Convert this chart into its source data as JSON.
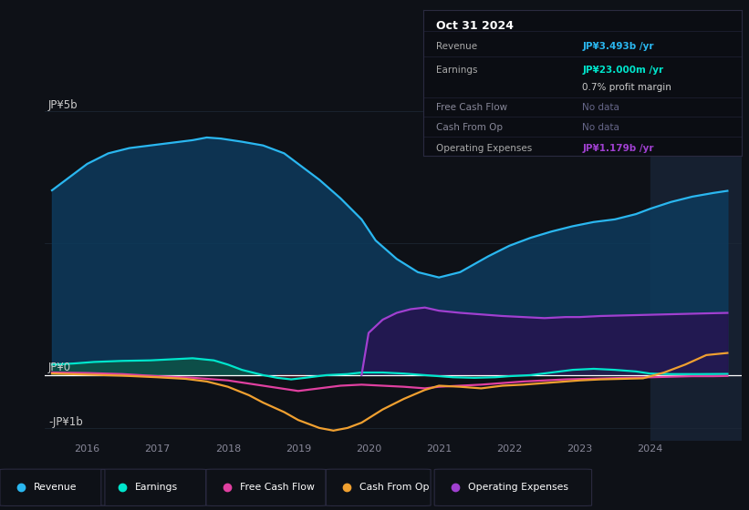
{
  "bg_color": "#0e1117",
  "plot_bg_color": "#0e1117",
  "ylabel_top": "JP¥5b",
  "ylabel_zero": "JP¥0",
  "ylabel_bottom": "-JP¥1b",
  "x_tick_labels": [
    "2016",
    "2017",
    "2018",
    "2019",
    "2020",
    "2021",
    "2022",
    "2023",
    "2024"
  ],
  "x_tick_positions": [
    2016,
    2017,
    2018,
    2019,
    2020,
    2021,
    2022,
    2023,
    2024
  ],
  "ylim": [
    -1.25,
    5.8
  ],
  "xlim": [
    2015.4,
    2025.3
  ],
  "revenue_color": "#2ab7f0",
  "earnings_color": "#00e5cc",
  "fcf_color": "#e040a0",
  "cashfromop_color": "#f0a030",
  "opex_color": "#a040d0",
  "revenue_fill_color": "#0d3a5c",
  "earnings_fill_pos_color": "#0d5a45",
  "earnings_fill_neg_color": "#4a1020",
  "opex_fill_color": "#2a1050",
  "info_box": {
    "title": "Oct 31 2024",
    "rows": [
      {
        "label": "Revenue",
        "value": "JP¥3.493b /yr",
        "value_color": "#2ab7f0",
        "dimmed": false
      },
      {
        "label": "Earnings",
        "value": "JP¥23.000m /yr",
        "value_color": "#00e5cc",
        "dimmed": false
      },
      {
        "label": "",
        "value": "0.7% profit margin",
        "value_color": "#cccccc",
        "dimmed": false
      },
      {
        "label": "Free Cash Flow",
        "value": "No data",
        "value_color": "#666688",
        "dimmed": true
      },
      {
        "label": "Cash From Op",
        "value": "No data",
        "value_color": "#666688",
        "dimmed": true
      },
      {
        "label": "Operating Expenses",
        "value": "JP¥1.179b /yr",
        "value_color": "#a040d0",
        "dimmed": false
      }
    ]
  },
  "legend": [
    {
      "label": "Revenue",
      "color": "#2ab7f0"
    },
    {
      "label": "Earnings",
      "color": "#00e5cc"
    },
    {
      "label": "Free Cash Flow",
      "color": "#e040a0"
    },
    {
      "label": "Cash From Op",
      "color": "#f0a030"
    },
    {
      "label": "Operating Expenses",
      "color": "#a040d0"
    }
  ],
  "revenue_x": [
    2015.5,
    2015.7,
    2016.0,
    2016.3,
    2016.6,
    2016.9,
    2017.2,
    2017.5,
    2017.7,
    2017.9,
    2018.2,
    2018.5,
    2018.8,
    2019.0,
    2019.3,
    2019.6,
    2019.9,
    2020.1,
    2020.4,
    2020.7,
    2021.0,
    2021.3,
    2021.5,
    2021.7,
    2022.0,
    2022.3,
    2022.6,
    2022.9,
    2023.2,
    2023.5,
    2023.8,
    2024.0,
    2024.3,
    2024.6,
    2024.9,
    2025.1
  ],
  "revenue_y": [
    3.5,
    3.7,
    4.0,
    4.2,
    4.3,
    4.35,
    4.4,
    4.45,
    4.5,
    4.48,
    4.42,
    4.35,
    4.2,
    4.0,
    3.7,
    3.35,
    2.95,
    2.55,
    2.2,
    1.95,
    1.85,
    1.95,
    2.1,
    2.25,
    2.45,
    2.6,
    2.72,
    2.82,
    2.9,
    2.95,
    3.05,
    3.15,
    3.28,
    3.38,
    3.45,
    3.49
  ],
  "earnings_x": [
    2015.5,
    2015.8,
    2016.1,
    2016.5,
    2016.9,
    2017.2,
    2017.5,
    2017.8,
    2018.0,
    2018.2,
    2018.5,
    2018.7,
    2018.9,
    2019.1,
    2019.4,
    2019.7,
    2019.9,
    2020.2,
    2020.5,
    2020.8,
    2021.0,
    2021.2,
    2021.5,
    2021.8,
    2022.0,
    2022.3,
    2022.6,
    2022.9,
    2023.2,
    2023.5,
    2023.8,
    2024.0,
    2024.3,
    2024.7,
    2025.1
  ],
  "earnings_y": [
    0.2,
    0.22,
    0.25,
    0.27,
    0.28,
    0.3,
    0.32,
    0.28,
    0.2,
    0.1,
    0.0,
    -0.05,
    -0.08,
    -0.05,
    0.0,
    0.02,
    0.05,
    0.05,
    0.03,
    0.0,
    -0.02,
    -0.04,
    -0.05,
    -0.04,
    -0.02,
    0.0,
    0.05,
    0.1,
    0.12,
    0.1,
    0.07,
    0.03,
    0.02,
    0.02,
    0.023
  ],
  "fcf_x": [
    2015.5,
    2016.0,
    2016.5,
    2017.0,
    2017.5,
    2018.0,
    2018.5,
    2019.0,
    2019.3,
    2019.6,
    2019.9,
    2020.2,
    2020.5,
    2020.8,
    2021.0,
    2021.3,
    2021.6,
    2021.9,
    2022.2,
    2022.5,
    2022.8,
    2023.1,
    2023.4,
    2023.7,
    2024.0,
    2024.3,
    2024.6,
    2024.9,
    2025.1
  ],
  "fcf_y": [
    0.05,
    0.04,
    0.02,
    -0.02,
    -0.05,
    -0.1,
    -0.2,
    -0.3,
    -0.25,
    -0.2,
    -0.18,
    -0.2,
    -0.22,
    -0.25,
    -0.22,
    -0.2,
    -0.18,
    -0.15,
    -0.12,
    -0.1,
    -0.08,
    -0.07,
    -0.06,
    -0.05,
    -0.04,
    -0.03,
    -0.02,
    -0.02,
    -0.015
  ],
  "cashfromop_x": [
    2015.5,
    2016.0,
    2016.5,
    2017.0,
    2017.4,
    2017.7,
    2018.0,
    2018.3,
    2018.5,
    2018.8,
    2019.0,
    2019.3,
    2019.5,
    2019.7,
    2019.9,
    2020.2,
    2020.5,
    2020.8,
    2021.0,
    2021.3,
    2021.6,
    2021.9,
    2022.2,
    2022.5,
    2022.8,
    2023.0,
    2023.3,
    2023.6,
    2023.9,
    2024.2,
    2024.5,
    2024.8,
    2025.1
  ],
  "cashfromop_y": [
    0.03,
    0.01,
    -0.01,
    -0.04,
    -0.07,
    -0.12,
    -0.22,
    -0.38,
    -0.52,
    -0.7,
    -0.85,
    -1.0,
    -1.05,
    -1.0,
    -0.9,
    -0.65,
    -0.45,
    -0.28,
    -0.2,
    -0.22,
    -0.25,
    -0.2,
    -0.18,
    -0.15,
    -0.12,
    -0.1,
    -0.08,
    -0.07,
    -0.06,
    0.05,
    0.2,
    0.38,
    0.42
  ],
  "opex_x": [
    2019.9,
    2020.0,
    2020.2,
    2020.4,
    2020.6,
    2020.8,
    2021.0,
    2021.3,
    2021.6,
    2021.9,
    2022.2,
    2022.5,
    2022.8,
    2023.0,
    2023.3,
    2023.6,
    2023.9,
    2024.2,
    2024.5,
    2024.8,
    2025.1
  ],
  "opex_y": [
    0.0,
    0.8,
    1.05,
    1.18,
    1.25,
    1.28,
    1.22,
    1.18,
    1.15,
    1.12,
    1.1,
    1.08,
    1.1,
    1.1,
    1.12,
    1.13,
    1.14,
    1.15,
    1.16,
    1.17,
    1.179
  ],
  "highlight_x_start": 2024.0,
  "gridline_color": "#1e2a38"
}
